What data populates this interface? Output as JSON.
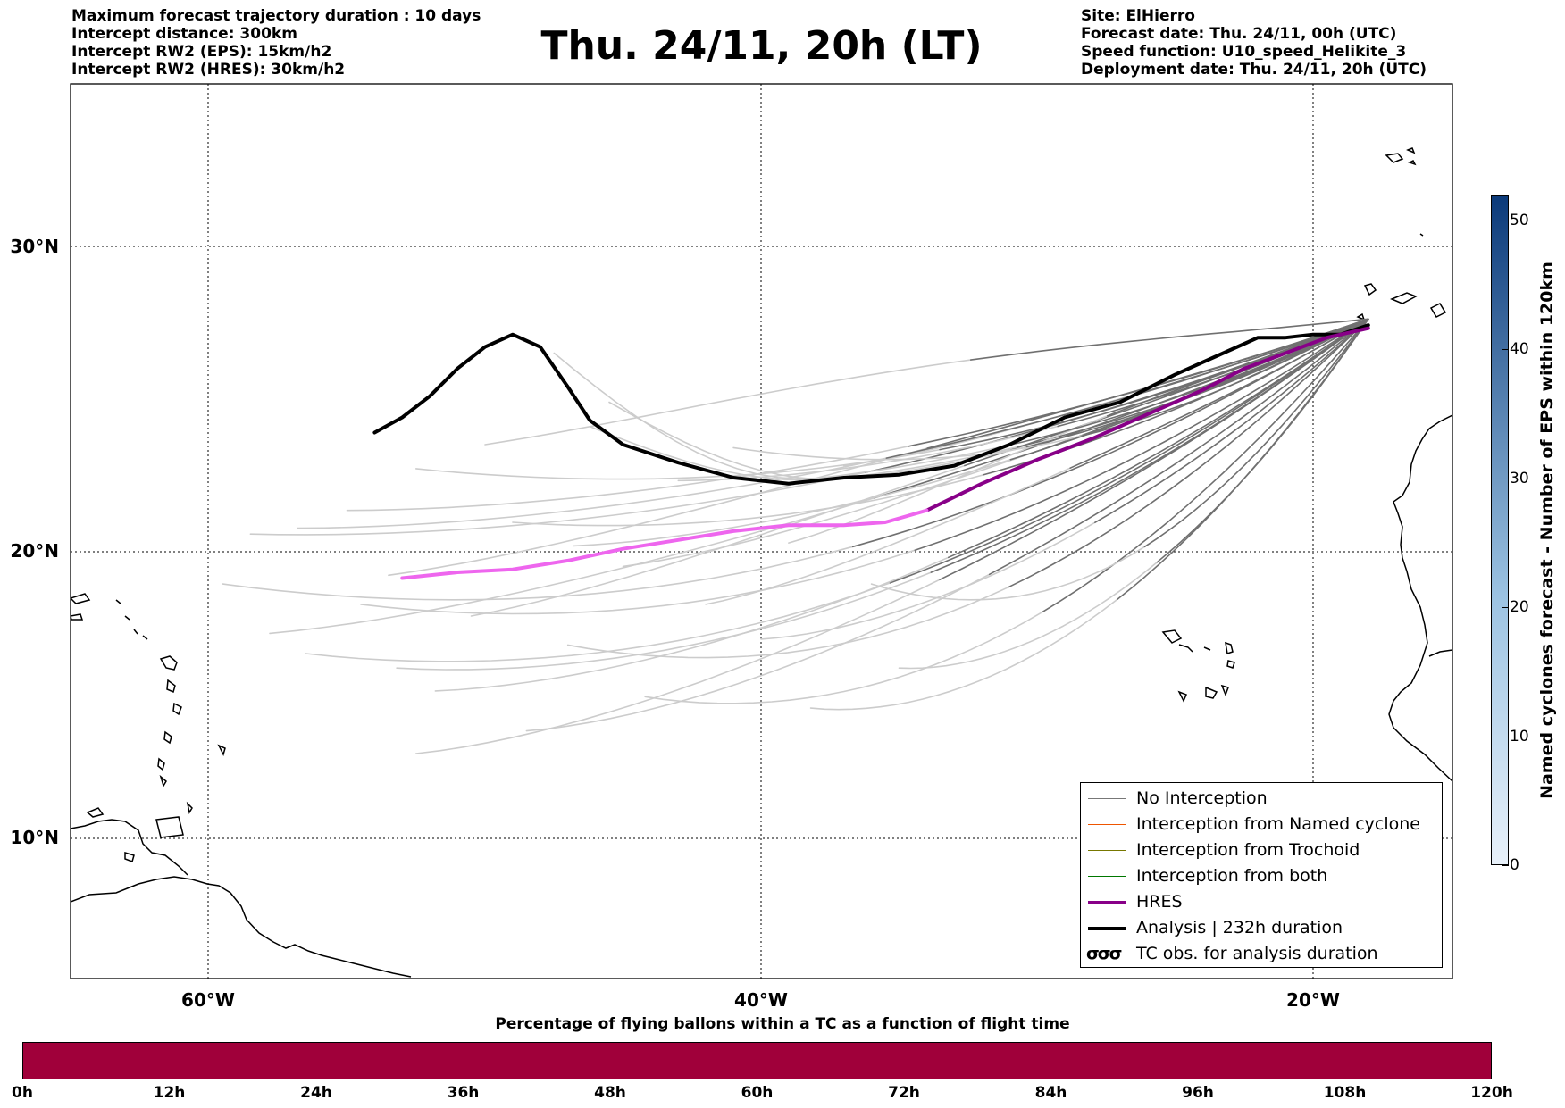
{
  "header": {
    "left_lines": [
      "Maximum forecast trajectory duration : 10 days",
      "Intercept distance: 300km",
      "Intercept RW2 (EPS):  15km/h2",
      "Intercept RW2 (HRES): 30km/h2"
    ],
    "title": "Thu. 24/11, 20h (LT)",
    "right_lines": [
      "Site: ElHierro",
      "Forecast date: Thu. 24/11, 00h (UTC)",
      "Speed function: U10_speed_Helikite_3",
      "Deployment date: Thu. 24/11, 20h (UTC)"
    ]
  },
  "map": {
    "lat_labels": [
      "30°N",
      "20°N",
      "10°N"
    ],
    "lon_labels": [
      "60°W",
      "40°W",
      "20°W"
    ],
    "colors": {
      "ensemble_far": "#cccccc",
      "ensemble_near": "#707070",
      "hres_far": "#ee66ee",
      "hres_near": "#880088",
      "analysis": "#000000",
      "grid": "#000000",
      "coast": "#000000"
    },
    "deployment_site": "ElHierro"
  },
  "legend": {
    "items": [
      {
        "label": "No Interception",
        "color": "#777777",
        "style": "thin"
      },
      {
        "label": "Interception from Named cyclone",
        "color": "#ee5500",
        "style": "thin"
      },
      {
        "label": "Interception from Trochoid",
        "color": "#777700",
        "style": "thin"
      },
      {
        "label": "Interception from both",
        "color": "#007700",
        "style": "thin"
      },
      {
        "label": "HRES",
        "color": "#880088",
        "style": "thick"
      },
      {
        "label": "Analysis | 232h duration",
        "color": "#000000",
        "style": "thick"
      }
    ],
    "tc_obs": {
      "symbol": "σσσ",
      "label": "TC obs. for analysis duration"
    }
  },
  "colorbar_right": {
    "label": "Named cyclones forecast - Number of EPS within 120km",
    "ticks": [
      "0",
      "10",
      "20",
      "30",
      "40",
      "50"
    ],
    "range": [
      0,
      52
    ],
    "color_low": "#e8f1fa",
    "color_high": "#0b3a7a"
  },
  "colorbar_bottom": {
    "label": "Percentage of flying ballons within a TC as a function of flight time",
    "ticks": [
      "0h",
      "12h",
      "24h",
      "36h",
      "48h",
      "60h",
      "72h",
      "84h",
      "96h",
      "108h",
      "120h"
    ],
    "color": "#a0003a"
  }
}
